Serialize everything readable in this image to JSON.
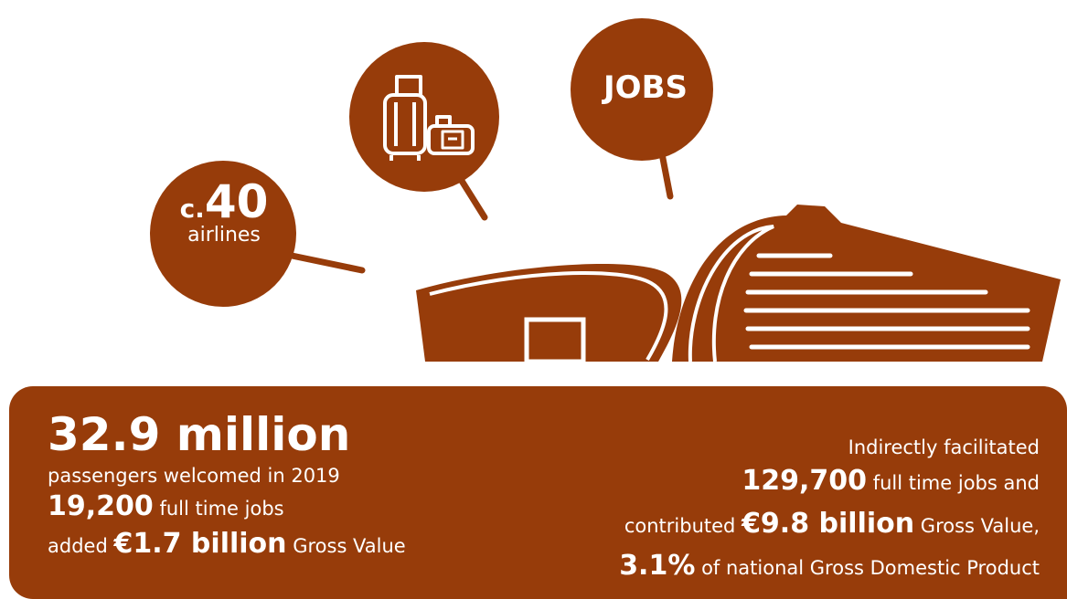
{
  "colors": {
    "brand": "#973c0a",
    "text_on_brand": "#ffffff"
  },
  "bubbles": {
    "airlines": {
      "prefix": "c.",
      "number": "40",
      "label": "airlines"
    },
    "luggage": {
      "icon": "luggage-icon"
    },
    "jobs": {
      "label": "JOBS"
    }
  },
  "building": {
    "icon": "airport-terminal-icon"
  },
  "left_stats": {
    "headline": "32.9 million",
    "passengers_text": "passengers welcomed in 2019",
    "jobs_value": "19,200",
    "jobs_text": "full time jobs",
    "gva_prefix": "added",
    "gva_value": "€1.7 billion",
    "gva_suffix": "Gross Value"
  },
  "right_stats": {
    "intro": "Indirectly facilitated",
    "jobs_value": "129,700",
    "jobs_text": "full time jobs and",
    "contrib_prefix": "contributed",
    "contrib_value": "€9.8 billion",
    "contrib_suffix": "Gross Value,",
    "gdp_value": "3.1%",
    "gdp_text": "of national Gross Domestic Product"
  }
}
